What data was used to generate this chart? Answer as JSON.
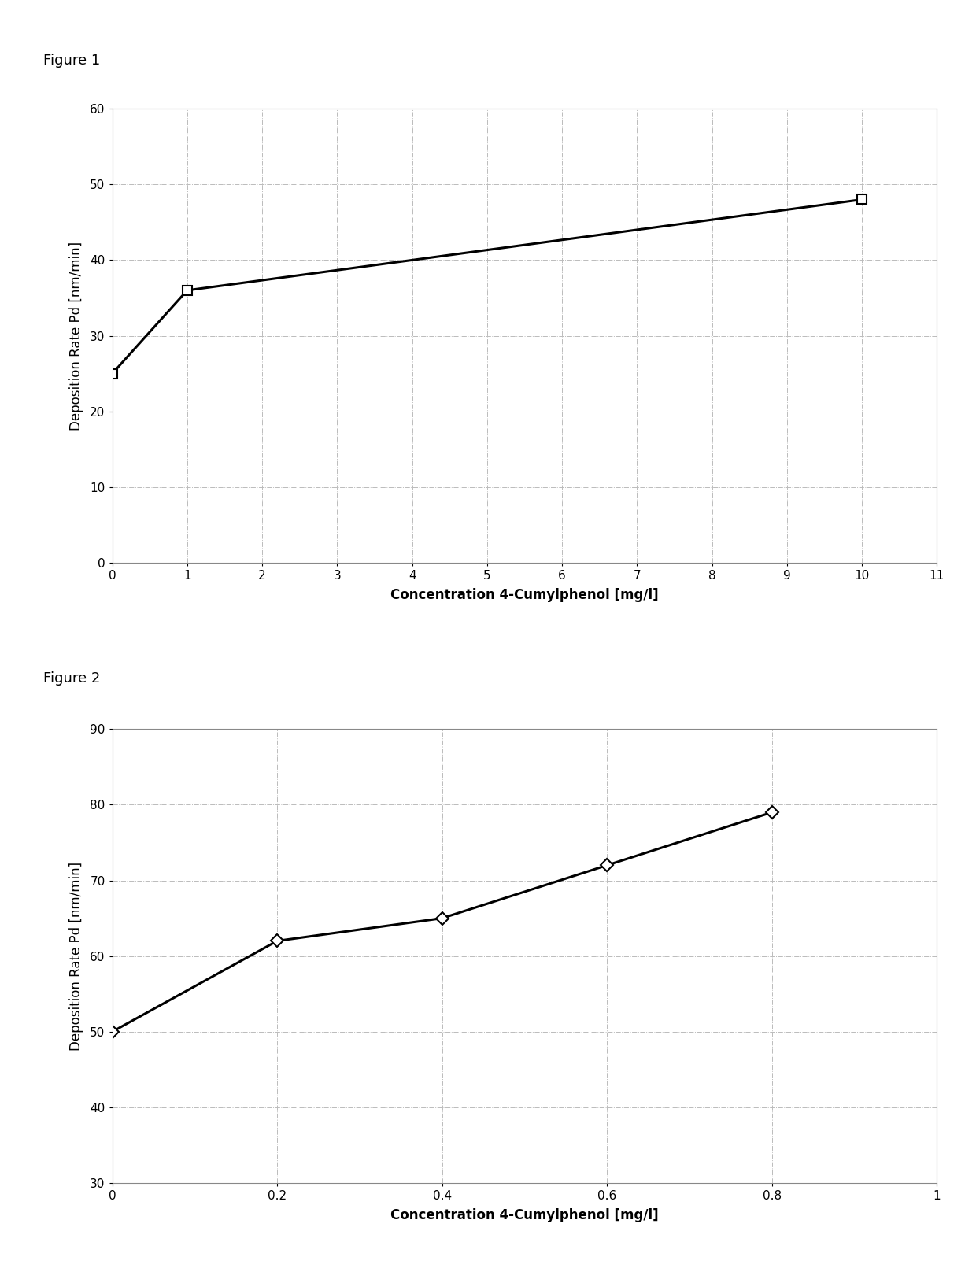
{
  "fig1": {
    "label": "Figure 1",
    "x": [
      0,
      1,
      10
    ],
    "y": [
      25,
      36,
      48
    ],
    "xlabel": "Concentration 4-Cumylphenol [mg/l]",
    "ylabel": "Deposition Rate Pd [nm/min]",
    "xlim": [
      0,
      11
    ],
    "ylim": [
      0,
      60
    ],
    "xticks": [
      0,
      1,
      2,
      3,
      4,
      5,
      6,
      7,
      8,
      9,
      10,
      11
    ],
    "yticks": [
      0,
      10,
      20,
      30,
      40,
      50,
      60
    ],
    "marker": "s",
    "markersize": 8,
    "linewidth": 2.2,
    "line_color": "#000000"
  },
  "fig2": {
    "label": "Figure 2",
    "x": [
      0,
      0.2,
      0.4,
      0.6,
      0.8
    ],
    "y": [
      50,
      62,
      65,
      72,
      79
    ],
    "xlabel": "Concentration 4-Cumylphenol [mg/l]",
    "ylabel": "Deposition Rate Pd [nm/min]",
    "xlim": [
      0,
      1
    ],
    "ylim": [
      30,
      90
    ],
    "xticks": [
      0,
      0.2,
      0.4,
      0.6,
      0.8,
      1.0
    ],
    "yticks": [
      30,
      40,
      50,
      60,
      70,
      80,
      90
    ],
    "marker": "D",
    "markersize": 8,
    "linewidth": 2.2,
    "line_color": "#000000"
  },
  "figure_label_fontsize": 13,
  "axis_label_fontsize": 12,
  "tick_fontsize": 11,
  "bg_color": "#ffffff",
  "plot_bg_color": "#ffffff",
  "grid_color": "#bbbbbb",
  "grid_style": "-.",
  "border_color": "#888888"
}
